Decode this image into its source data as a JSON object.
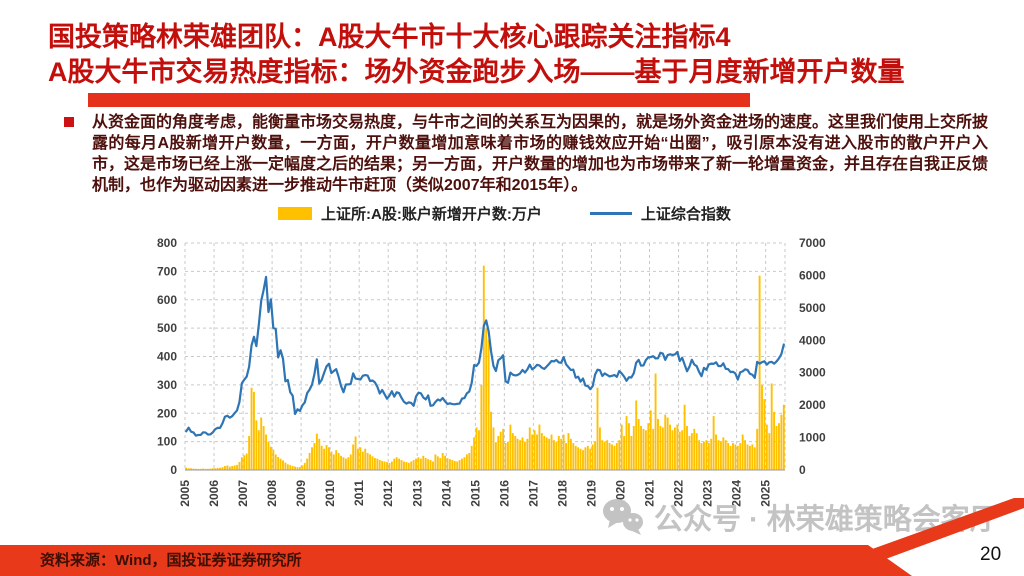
{
  "slide": {
    "header": {
      "title_line1": "国投策略林荣雄团队：A股大牛市十大核心跟踪关注指标4",
      "title_line2": "A股大牛市交易热度指标：场外资金跑步入场——基于月度新增开户数量"
    },
    "body": {
      "paragraph": "从资金面的角度考虑，能衡量市场交易热度，与牛市之间的关系互为因果的，就是场外资金进场的速度。这里我们使用上交所披露的每月A股新增开户数量，一方面，开户数量增加意味着市场的赚钱效应开始“出圈”，吸引原本没有进入股市的散户开户入市，这是市场已经上涨一定幅度之后的结果；另一方面，开户数量的增加也为市场带来了新一轮增量资金，并且存在自我正反馈机制，也作为驱动因素进一步推动牛市赶顶（类似2007年和2015年）。"
    },
    "watermark": {
      "text": "公众号 · 林荣雄策略会客厅",
      "icon": "wechat-icon"
    },
    "footer": {
      "source": "资料来源：Wind，国投证券证券研究所",
      "page_number": "20"
    },
    "colors": {
      "title_red": "#c20f0c",
      "accent_red": "#e5301b",
      "footer_red": "#e8391a",
      "body_maroon": "#4d100c",
      "bar_yellow": "#ffc000",
      "line_blue": "#2e75b6",
      "watermark_gray": "#c3c3c3"
    }
  },
  "chart_data": {
    "type": "combo",
    "x": {
      "start": "2005-01",
      "end": "2025-08",
      "freq": "monthly"
    },
    "x_tick_labels": [
      "2005",
      "2006",
      "2007",
      "2008",
      "2009",
      "2010",
      "2011",
      "2012",
      "2013",
      "2014",
      "2015",
      "2016",
      "2017",
      "2018",
      "2019",
      "2020",
      "2021",
      "2022",
      "2023",
      "2024",
      "2025"
    ],
    "left_axis": {
      "min": 0,
      "max": 800,
      "step": 100
    },
    "right_axis": {
      "min": 0,
      "max": 7000,
      "step": 1000
    },
    "grid": {
      "style": "dashed",
      "horizontal": true,
      "vertical": true
    },
    "legend_position": "top",
    "series": [
      {
        "name": "上证所:A股:账户新增开户数:万户",
        "type": "bar",
        "axis": "left",
        "color": "#ffc000",
        "values": [
          8,
          6,
          6,
          5,
          4,
          4,
          4,
          5,
          4,
          4,
          5,
          6,
          6,
          7,
          8,
          10,
          14,
          16,
          12,
          14,
          16,
          18,
          28,
          45,
          52,
          58,
          120,
          290,
          275,
          175,
          140,
          185,
          155,
          125,
          100,
          82,
          72,
          55,
          46,
          40,
          34,
          26,
          20,
          17,
          14,
          12,
          10,
          10,
          16,
          25,
          40,
          60,
          80,
          95,
          128,
          110,
          85,
          75,
          88,
          80,
          65,
          55,
          70,
          60,
          50,
          45,
          40,
          45,
          55,
          90,
          118,
          75,
          80,
          65,
          75,
          60,
          55,
          48,
          42,
          40,
          35,
          32,
          30,
          28,
          25,
          30,
          40,
          45,
          40,
          35,
          30,
          28,
          25,
          30,
          35,
          40,
          45,
          40,
          50,
          42,
          38,
          35,
          30,
          55,
          48,
          42,
          60,
          50,
          42,
          38,
          35,
          32,
          30,
          35,
          40,
          45,
          55,
          60,
          85,
          115,
          150,
          140,
          300,
          720,
          498,
          460,
          205,
          150,
          98,
          120,
          135,
          145,
          95,
          100,
          160,
          130,
          120,
          110,
          105,
          115,
          100,
          110,
          150,
          125,
          140,
          125,
          160,
          130,
          120,
          115,
          110,
          125,
          105,
          100,
          120,
          110,
          125,
          95,
          130,
          110,
          95,
          85,
          80,
          75,
          70,
          80,
          85,
          75,
          90,
          100,
          290,
          150,
          105,
          100,
          105,
          95,
          90,
          85,
          95,
          105,
          160,
          120,
          190,
          165,
          120,
          155,
          245,
          180,
          155,
          145,
          140,
          165,
          210,
          145,
          340,
          180,
          155,
          150,
          195,
          185,
          160,
          140,
          150,
          160,
          135,
          140,
          230,
          155,
          120,
          130,
          145,
          130,
          105,
          95,
          100,
          105,
          95,
          110,
          190,
          125,
          105,
          100,
          115,
          105,
          95,
          85,
          95,
          90,
          85,
          95,
          125,
          105,
          90,
          85,
          90,
          80,
          145,
          685,
          300,
          250,
          160,
          130,
          305,
          205,
          155,
          165,
          195,
          230
        ]
      },
      {
        "name": "上证综合指数",
        "type": "line",
        "axis": "right",
        "color": "#2e75b6",
        "values": [
          1192,
          1306,
          1181,
          1159,
          1060,
          1081,
          1083,
          1163,
          1155,
          1092,
          1099,
          1161,
          1258,
          1299,
          1298,
          1440,
          1641,
          1672,
          1613,
          1658,
          1752,
          1837,
          2099,
          2675,
          2786,
          2881,
          3184,
          3841,
          4109,
          3821,
          4471,
          5218,
          5552,
          5955,
          4872,
          5262,
          4383,
          4348,
          3473,
          3693,
          3433,
          2736,
          2776,
          2397,
          2294,
          1729,
          1871,
          1821,
          1991,
          2083,
          2373,
          2478,
          2633,
          2959,
          3412,
          2668,
          2779,
          2995,
          3195,
          3277,
          2989,
          3052,
          3109,
          2871,
          2592,
          2398,
          2638,
          2639,
          2656,
          2979,
          2820,
          2808,
          2790,
          2905,
          2928,
          2911,
          2743,
          2762,
          2701,
          2567,
          2359,
          2468,
          2333,
          2199,
          2293,
          2428,
          2262,
          2396,
          2372,
          2225,
          2103,
          2047,
          2086,
          2068,
          1980,
          2269,
          2385,
          2365,
          2236,
          2177,
          2301,
          1979,
          1994,
          2098,
          2175,
          2141,
          2221,
          2116,
          2033,
          2056,
          2033,
          2026,
          2039,
          2048,
          2201,
          2217,
          2364,
          2420,
          2683,
          3235,
          3210,
          3310,
          3748,
          4442,
          4612,
          4277,
          3664,
          3206,
          3053,
          3383,
          3445,
          3539,
          2738,
          2688,
          3004,
          2938,
          2917,
          2930,
          2979,
          3085,
          3005,
          3100,
          3250,
          3104,
          3159,
          3242,
          3223,
          3155,
          3117,
          3192,
          3273,
          3361,
          3349,
          3393,
          3317,
          3307,
          3481,
          3259,
          3169,
          3082,
          3095,
          2847,
          2876,
          2725,
          2821,
          2603,
          2588,
          2494,
          2585,
          2941,
          3091,
          3078,
          2899,
          2979,
          2933,
          2886,
          2905,
          2929,
          2872,
          3050,
          2977,
          2880,
          2750,
          2860,
          2852,
          2985,
          3310,
          3396,
          3218,
          3225,
          3392,
          3473,
          3483,
          3509,
          3442,
          3447,
          3615,
          3591,
          3397,
          3544,
          3568,
          3547,
          3564,
          3640,
          3361,
          3462,
          3252,
          3047,
          3186,
          3399,
          3253,
          3202,
          3024,
          2893,
          3151,
          3089,
          3256,
          3280,
          3273,
          3323,
          3205,
          3202,
          3291,
          3120,
          3110,
          3019,
          3030,
          2975,
          2789,
          3015,
          3041,
          3105,
          3087,
          2967,
          2938,
          2842,
          3336,
          3280,
          3326,
          3352,
          3250,
          3321,
          3336,
          3279,
          3347,
          3444,
          3573,
          3870
        ]
      }
    ]
  }
}
